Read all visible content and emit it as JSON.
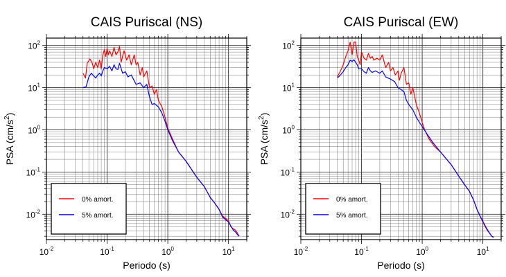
{
  "chart_data": [
    {
      "type": "line",
      "title": "CAIS Puriscal (NS)",
      "xlabel": "Periodo (s)",
      "ylabel": "PSA (cm/s²)",
      "xscale": "log",
      "yscale": "log",
      "xlim": [
        0.01,
        20
      ],
      "ylim": [
        0.0025,
        150
      ],
      "grid": true,
      "legend_position": "bottom-left",
      "x_ticks": [
        "10^-2",
        "10^-1",
        "10^0",
        "10^1"
      ],
      "y_ticks": [
        "10^-2",
        "10^-1",
        "10^0",
        "10^1",
        "10^2"
      ],
      "series": [
        {
          "name": "0% amort.",
          "color": "#ff0000",
          "points": [
            [
              0.04,
              22
            ],
            [
              0.044,
              17
            ],
            [
              0.047,
              38
            ],
            [
              0.052,
              48
            ],
            [
              0.057,
              38
            ],
            [
              0.06,
              28
            ],
            [
              0.065,
              40
            ],
            [
              0.07,
              30
            ],
            [
              0.075,
              45
            ],
            [
              0.08,
              28
            ],
            [
              0.085,
              60
            ],
            [
              0.09,
              80
            ],
            [
              0.095,
              55
            ],
            [
              0.1,
              85
            ],
            [
              0.105,
              60
            ],
            [
              0.11,
              75
            ],
            [
              0.12,
              55
            ],
            [
              0.13,
              90
            ],
            [
              0.14,
              60
            ],
            [
              0.15,
              70
            ],
            [
              0.16,
              95
            ],
            [
              0.17,
              40
            ],
            [
              0.19,
              75
            ],
            [
              0.21,
              45
            ],
            [
              0.23,
              60
            ],
            [
              0.25,
              35
            ],
            [
              0.28,
              60
            ],
            [
              0.3,
              35
            ],
            [
              0.32,
              40
            ],
            [
              0.35,
              20
            ],
            [
              0.38,
              30
            ],
            [
              0.4,
              18
            ],
            [
              0.45,
              25
            ],
            [
              0.5,
              10
            ],
            [
              0.55,
              11
            ],
            [
              0.6,
              7
            ],
            [
              0.65,
              9
            ],
            [
              0.7,
              5
            ],
            [
              0.8,
              3.5
            ],
            [
              0.9,
              2
            ],
            [
              1.0,
              1.1
            ],
            [
              1.2,
              0.6
            ],
            [
              1.5,
              0.3
            ],
            [
              2,
              0.18
            ],
            [
              3,
              0.075
            ],
            [
              4,
              0.045
            ],
            [
              5,
              0.025
            ],
            [
              6,
              0.018
            ],
            [
              7,
              0.013
            ],
            [
              8,
              0.009
            ],
            [
              10,
              0.007
            ],
            [
              11,
              0.005
            ],
            [
              12,
              0.0045
            ],
            [
              13,
              0.0042
            ],
            [
              14,
              0.0036
            ],
            [
              15,
              0.003
            ]
          ]
        },
        {
          "name": "5% amort.",
          "color": "#0000ff",
          "points": [
            [
              0.04,
              10
            ],
            [
              0.045,
              10.5
            ],
            [
              0.05,
              18
            ],
            [
              0.055,
              22
            ],
            [
              0.06,
              19
            ],
            [
              0.065,
              17
            ],
            [
              0.07,
              20
            ],
            [
              0.075,
              22
            ],
            [
              0.08,
              19
            ],
            [
              0.085,
              25
            ],
            [
              0.09,
              30
            ],
            [
              0.1,
              28
            ],
            [
              0.11,
              32
            ],
            [
              0.12,
              25
            ],
            [
              0.13,
              35
            ],
            [
              0.14,
              28
            ],
            [
              0.15,
              27
            ],
            [
              0.16,
              38
            ],
            [
              0.18,
              22
            ],
            [
              0.2,
              24
            ],
            [
              0.22,
              18
            ],
            [
              0.25,
              20
            ],
            [
              0.3,
              12
            ],
            [
              0.35,
              13
            ],
            [
              0.4,
              10
            ],
            [
              0.45,
              12
            ],
            [
              0.5,
              6
            ],
            [
              0.55,
              4
            ],
            [
              0.6,
              4.2
            ],
            [
              0.7,
              3.5
            ],
            [
              0.8,
              2.5
            ],
            [
              0.9,
              1.6
            ],
            [
              1.0,
              1.0
            ],
            [
              1.2,
              0.55
            ],
            [
              1.5,
              0.3
            ],
            [
              2,
              0.18
            ],
            [
              3,
              0.075
            ],
            [
              4,
              0.045
            ],
            [
              5,
              0.025
            ],
            [
              6,
              0.018
            ],
            [
              7,
              0.013
            ],
            [
              8,
              0.0085
            ],
            [
              10,
              0.0065
            ],
            [
              11,
              0.0052
            ],
            [
              12,
              0.0042
            ],
            [
              13,
              0.0038
            ],
            [
              14,
              0.0033
            ],
            [
              15,
              0.003
            ]
          ]
        }
      ]
    },
    {
      "type": "line",
      "title": "CAIS Puriscal (EW)",
      "xlabel": "Periodo (s)",
      "ylabel": "PSA (cm/s²)",
      "xscale": "log",
      "yscale": "log",
      "xlim": [
        0.01,
        20
      ],
      "ylim": [
        0.0025,
        150
      ],
      "grid": true,
      "legend_position": "bottom-left",
      "x_ticks": [
        "10^-2",
        "10^-1",
        "10^0",
        "10^1"
      ],
      "y_ticks": [
        "10^-2",
        "10^-1",
        "10^0",
        "10^1",
        "10^2"
      ],
      "series": [
        {
          "name": "0% amort.",
          "color": "#ff0000",
          "points": [
            [
              0.04,
              18
            ],
            [
              0.045,
              25
            ],
            [
              0.05,
              35
            ],
            [
              0.055,
              55
            ],
            [
              0.06,
              75
            ],
            [
              0.065,
              120
            ],
            [
              0.07,
              60
            ],
            [
              0.075,
              120
            ],
            [
              0.08,
              120
            ],
            [
              0.085,
              55
            ],
            [
              0.09,
              45
            ],
            [
              0.095,
              35
            ],
            [
              0.1,
              70
            ],
            [
              0.11,
              50
            ],
            [
              0.12,
              45
            ],
            [
              0.13,
              65
            ],
            [
              0.14,
              50
            ],
            [
              0.15,
              55
            ],
            [
              0.16,
              45
            ],
            [
              0.18,
              50
            ],
            [
              0.2,
              45
            ],
            [
              0.22,
              60
            ],
            [
              0.25,
              30
            ],
            [
              0.28,
              40
            ],
            [
              0.3,
              25
            ],
            [
              0.33,
              30
            ],
            [
              0.36,
              20
            ],
            [
              0.4,
              25
            ],
            [
              0.42,
              15
            ],
            [
              0.45,
              22
            ],
            [
              0.5,
              30
            ],
            [
              0.55,
              12
            ],
            [
              0.6,
              13
            ],
            [
              0.65,
              7
            ],
            [
              0.7,
              10
            ],
            [
              0.8,
              4
            ],
            [
              0.9,
              2.5
            ],
            [
              1.0,
              1.5
            ],
            [
              1.1,
              1.0
            ],
            [
              1.3,
              0.6
            ],
            [
              1.6,
              0.4
            ],
            [
              2,
              0.3
            ],
            [
              3,
              0.15
            ],
            [
              4,
              0.08
            ],
            [
              5,
              0.05
            ],
            [
              6,
              0.035
            ],
            [
              7,
              0.022
            ],
            [
              8,
              0.013
            ],
            [
              9,
              0.009
            ],
            [
              10,
              0.0065
            ],
            [
              11,
              0.005
            ],
            [
              12,
              0.004
            ],
            [
              13,
              0.0035
            ],
            [
              14,
              0.003
            ],
            [
              15,
              0.0029
            ]
          ]
        },
        {
          "name": "5% amort.",
          "color": "#0000ff",
          "points": [
            [
              0.04,
              17
            ],
            [
              0.045,
              20
            ],
            [
              0.05,
              24
            ],
            [
              0.055,
              30
            ],
            [
              0.06,
              35
            ],
            [
              0.065,
              45
            ],
            [
              0.07,
              42
            ],
            [
              0.075,
              46
            ],
            [
              0.08,
              40
            ],
            [
              0.085,
              35
            ],
            [
              0.09,
              28
            ],
            [
              0.1,
              28
            ],
            [
              0.11,
              24
            ],
            [
              0.12,
              22
            ],
            [
              0.13,
              30
            ],
            [
              0.14,
              25
            ],
            [
              0.15,
              23
            ],
            [
              0.17,
              25
            ],
            [
              0.2,
              22
            ],
            [
              0.22,
              25
            ],
            [
              0.25,
              18
            ],
            [
              0.3,
              16
            ],
            [
              0.35,
              14
            ],
            [
              0.4,
              10
            ],
            [
              0.45,
              9
            ],
            [
              0.5,
              8
            ],
            [
              0.55,
              5
            ],
            [
              0.6,
              4
            ],
            [
              0.7,
              3
            ],
            [
              0.8,
              2
            ],
            [
              0.9,
              1.5
            ],
            [
              1.0,
              1.2
            ],
            [
              1.2,
              0.8
            ],
            [
              1.5,
              0.5
            ],
            [
              2,
              0.3
            ],
            [
              3,
              0.15
            ],
            [
              4,
              0.08
            ],
            [
              5,
              0.05
            ],
            [
              6,
              0.035
            ],
            [
              7,
              0.022
            ],
            [
              8,
              0.013
            ],
            [
              9,
              0.009
            ],
            [
              10,
              0.0068
            ],
            [
              11,
              0.0052
            ],
            [
              12,
              0.0042
            ],
            [
              13,
              0.0035
            ],
            [
              14,
              0.003
            ],
            [
              15,
              0.0028
            ]
          ]
        }
      ]
    }
  ]
}
